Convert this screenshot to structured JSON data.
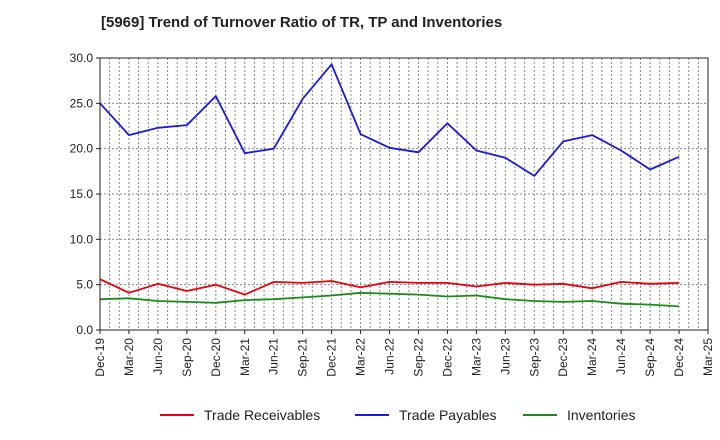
{
  "chart_data": {
    "type": "line",
    "title": "[5969]  Trend of Turnover Ratio of TR, TP and Inventories",
    "xlabel": "",
    "ylabel": "",
    "x": [
      "Dec-19",
      "Mar-20",
      "Jun-20",
      "Sep-20",
      "Dec-20",
      "Mar-21",
      "Jun-21",
      "Sep-21",
      "Dec-21",
      "Mar-22",
      "Jun-22",
      "Sep-22",
      "Dec-22",
      "Mar-23",
      "Jun-23",
      "Sep-23",
      "Dec-23",
      "Mar-24",
      "Jun-24",
      "Sep-24",
      "Dec-24"
    ],
    "x_ticks": [
      "Dec-19",
      "Mar-20",
      "Jun-20",
      "Sep-20",
      "Dec-20",
      "Mar-21",
      "Jun-21",
      "Sep-21",
      "Dec-21",
      "Mar-22",
      "Jun-22",
      "Sep-22",
      "Dec-22",
      "Mar-23",
      "Jun-23",
      "Sep-23",
      "Dec-23",
      "Mar-24",
      "Jun-24",
      "Sep-24",
      "Dec-24",
      "Mar-25"
    ],
    "y_ticks": [
      "0.0",
      "5.0",
      "10.0",
      "15.0",
      "20.0",
      "25.0",
      "30.0"
    ],
    "ylim": [
      0,
      30
    ],
    "grid": true,
    "legend_position": "bottom",
    "series": [
      {
        "name": "Trade Receivables",
        "color": "#e8000b",
        "values": [
          5.6,
          4.1,
          5.1,
          4.3,
          5.0,
          3.9,
          5.3,
          5.2,
          5.4,
          4.7,
          5.3,
          5.2,
          5.2,
          4.8,
          5.2,
          5.0,
          5.1,
          4.6,
          5.3,
          5.1,
          5.2
        ]
      },
      {
        "name": "Trade Payables",
        "color": "#1a1adf",
        "values": [
          25.0,
          21.5,
          22.3,
          22.6,
          25.8,
          19.5,
          20.0,
          25.5,
          29.3,
          21.6,
          20.1,
          19.6,
          22.8,
          19.8,
          19.0,
          17.0,
          20.8,
          21.5,
          19.8,
          17.7,
          19.1
        ]
      },
      {
        "name": "Inventories",
        "color": "#1a8c1a",
        "values": [
          3.4,
          3.5,
          3.2,
          3.1,
          3.0,
          3.3,
          3.4,
          3.6,
          3.8,
          4.1,
          4.0,
          3.9,
          3.7,
          3.8,
          3.4,
          3.2,
          3.1,
          3.2,
          2.9,
          2.8,
          2.6
        ]
      }
    ]
  }
}
